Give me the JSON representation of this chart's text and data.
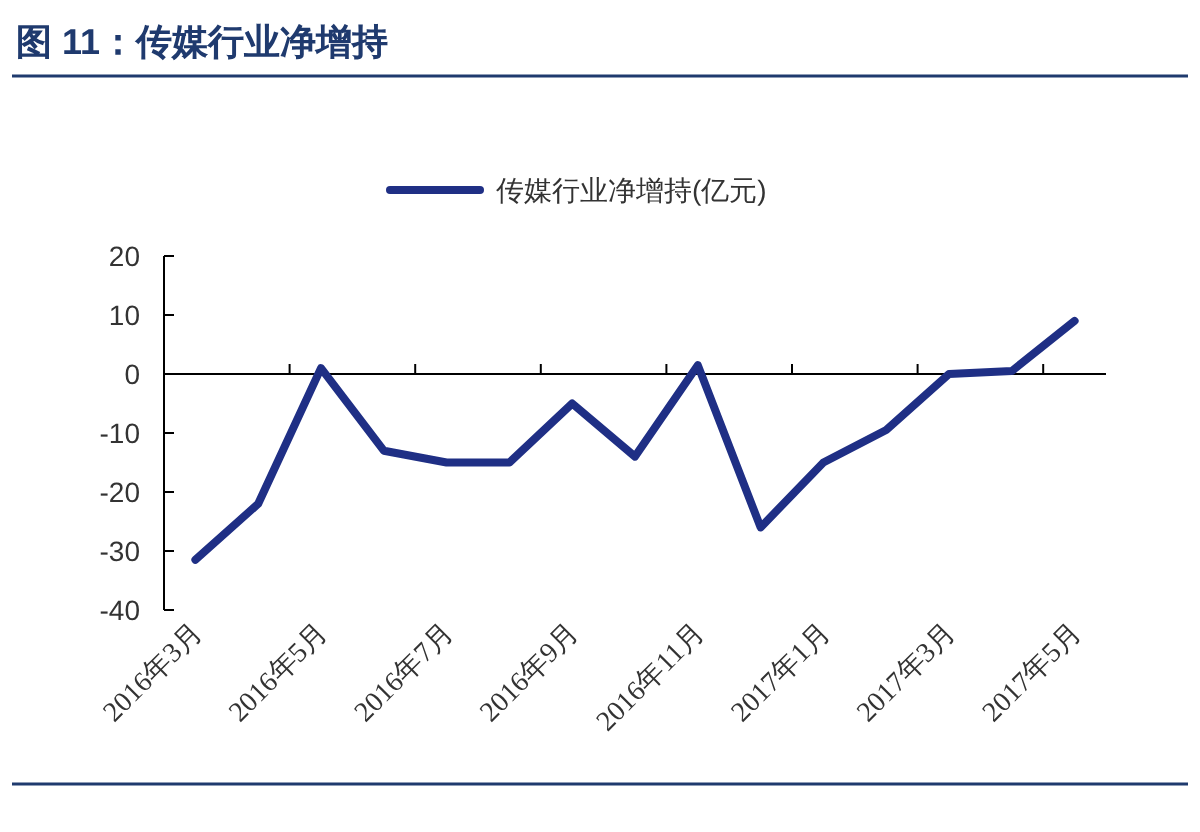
{
  "chart_data": {
    "type": "line",
    "title": "图 11：传媒行业净增持",
    "categories": [
      "2016年3月",
      null,
      "2016年5月",
      null,
      "2016年7月",
      null,
      "2016年9月",
      null,
      "2016年11月",
      null,
      "2017年1月",
      null,
      "2017年3月",
      null,
      "2017年5月"
    ],
    "series": [
      {
        "name": "传媒行业净增持(亿元)",
        "color": "#1f2f85",
        "values": [
          -31.5,
          -22,
          1,
          -13,
          -15,
          -15,
          -5,
          -14,
          1.5,
          -26,
          -15,
          -9.5,
          0,
          0.5,
          9
        ]
      }
    ],
    "ylim": [
      -40,
      20
    ],
    "yticks": [
      -40,
      -30,
      -20,
      -10,
      0,
      10,
      20
    ],
    "legend": "top"
  }
}
